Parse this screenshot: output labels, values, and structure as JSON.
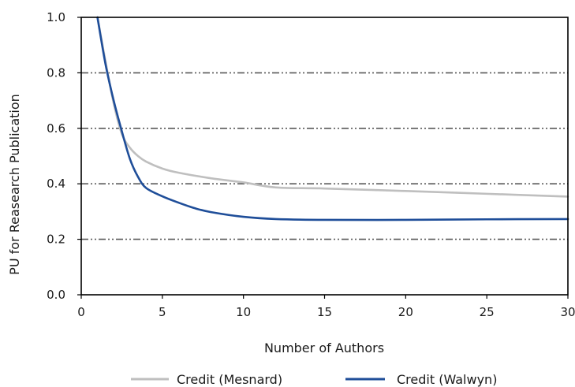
{
  "chart_data": {
    "type": "line",
    "title": "",
    "xlabel": "Number of Authors",
    "ylabel": "PU for Reasearch Publication",
    "xlim": [
      0,
      30
    ],
    "ylim": [
      0.0,
      1.0
    ],
    "x_ticks": [
      0,
      5,
      10,
      15,
      20,
      25,
      30
    ],
    "x_tick_labels": [
      "0",
      "5",
      "10",
      "15",
      "20",
      "25",
      "30"
    ],
    "y_ticks": [
      0.0,
      0.2,
      0.4,
      0.6,
      0.8,
      1.0
    ],
    "y_tick_labels": [
      "0.0",
      "0.2",
      "0.4",
      "0.6",
      "0.8",
      "1.0"
    ],
    "grid": "horizontal dash-dot lines",
    "legend_position": "bottom",
    "series": [
      {
        "name": "Credit (Mesnard)",
        "color": "#bfbfbf",
        "x": [
          1,
          1.5,
          2,
          2.5,
          3,
          3.5,
          4,
          5,
          6,
          8,
          10,
          12,
          15,
          20,
          25,
          30
        ],
        "y": [
          1.0,
          0.84,
          0.69,
          0.58,
          0.53,
          0.5,
          0.48,
          0.455,
          0.44,
          0.42,
          0.405,
          0.387,
          0.383,
          0.374,
          0.364,
          0.354
        ]
      },
      {
        "name": "Credit (Walwyn)",
        "color": "#1f4e99",
        "x": [
          1,
          1.5,
          2,
          2.5,
          3,
          3.5,
          4,
          5,
          6,
          7,
          8,
          10,
          12,
          15,
          20,
          25,
          30
        ],
        "y": [
          1.0,
          0.83,
          0.7,
          0.59,
          0.49,
          0.425,
          0.385,
          0.355,
          0.332,
          0.312,
          0.298,
          0.281,
          0.273,
          0.27,
          0.27,
          0.272,
          0.273
        ]
      }
    ]
  }
}
